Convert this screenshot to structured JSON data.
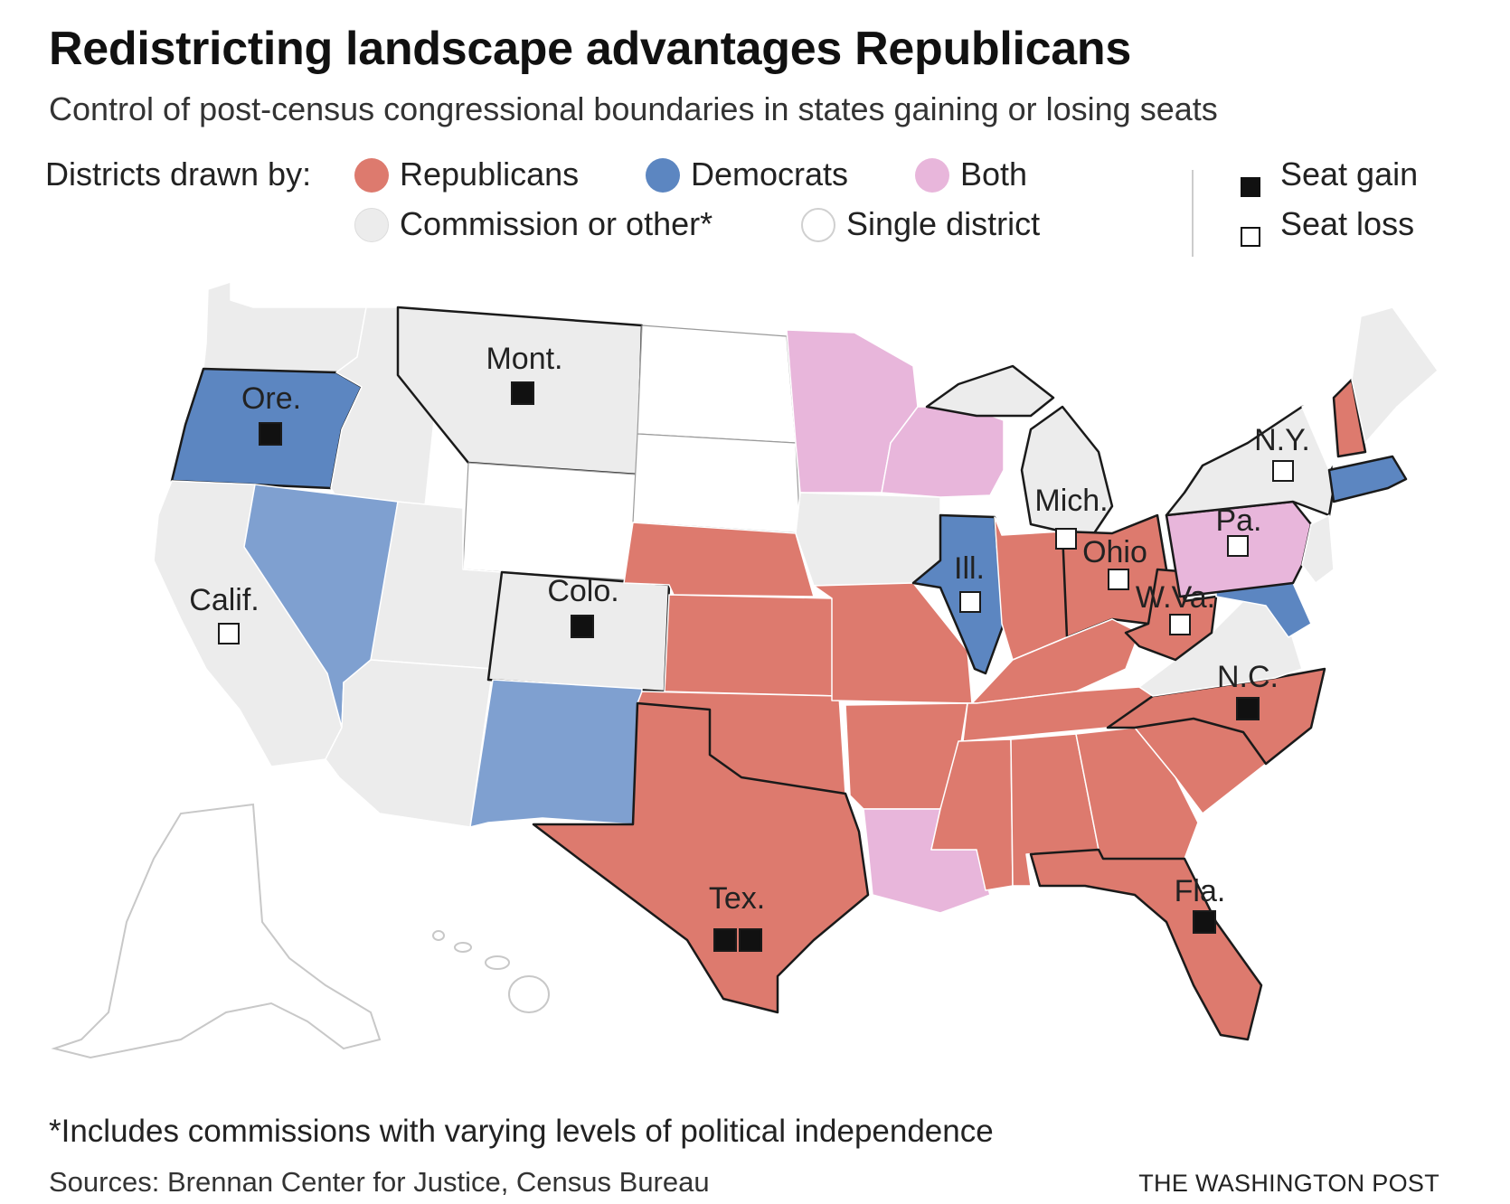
{
  "title": "Redistricting landscape advantages Republicans",
  "subtitle": "Control of post-census congressional boundaries in states gaining or losing seats",
  "legend": {
    "heading": "Districts drawn by:",
    "items": [
      {
        "label": "Republicans",
        "color": "#dd7a6e"
      },
      {
        "label": "Democrats",
        "color": "#5c86c1"
      },
      {
        "label": "Both",
        "color": "#e8b6db"
      },
      {
        "label": "Commission or other*",
        "color": "#ececec"
      },
      {
        "label": "Single district",
        "color": "#ffffff"
      }
    ],
    "seat_gain": "Seat gain",
    "seat_loss": "Seat loss"
  },
  "states": [
    {
      "name": "Ore.",
      "drawn_by": "Democrats",
      "seat_change": 1
    },
    {
      "name": "Mont.",
      "drawn_by": "Commission or other*",
      "seat_change": 1
    },
    {
      "name": "Calif.",
      "drawn_by": "Commission or other*",
      "seat_change": -1
    },
    {
      "name": "Colo.",
      "drawn_by": "Commission or other*",
      "seat_change": 1
    },
    {
      "name": "Tex.",
      "drawn_by": "Republicans",
      "seat_change": 2
    },
    {
      "name": "Mich.",
      "drawn_by": "Commission or other*",
      "seat_change": -1
    },
    {
      "name": "Ill.",
      "drawn_by": "Democrats",
      "seat_change": -1
    },
    {
      "name": "Ohio",
      "drawn_by": "Republicans",
      "seat_change": -1
    },
    {
      "name": "W.Va.",
      "drawn_by": "Republicans",
      "seat_change": -1
    },
    {
      "name": "Pa.",
      "drawn_by": "Both",
      "seat_change": -1
    },
    {
      "name": "N.Y.",
      "drawn_by": "Commission or other*",
      "seat_change": -1
    },
    {
      "name": "N.C.",
      "drawn_by": "Republicans",
      "seat_change": 1
    },
    {
      "name": "Fla.",
      "drawn_by": "Republicans",
      "seat_change": 1
    }
  ],
  "footnote": "*Includes commissions with varying levels of political independence",
  "sources": "Sources: Brennan Center for Justice, Census Bureau",
  "credit": "THE WASHINGTON POST"
}
